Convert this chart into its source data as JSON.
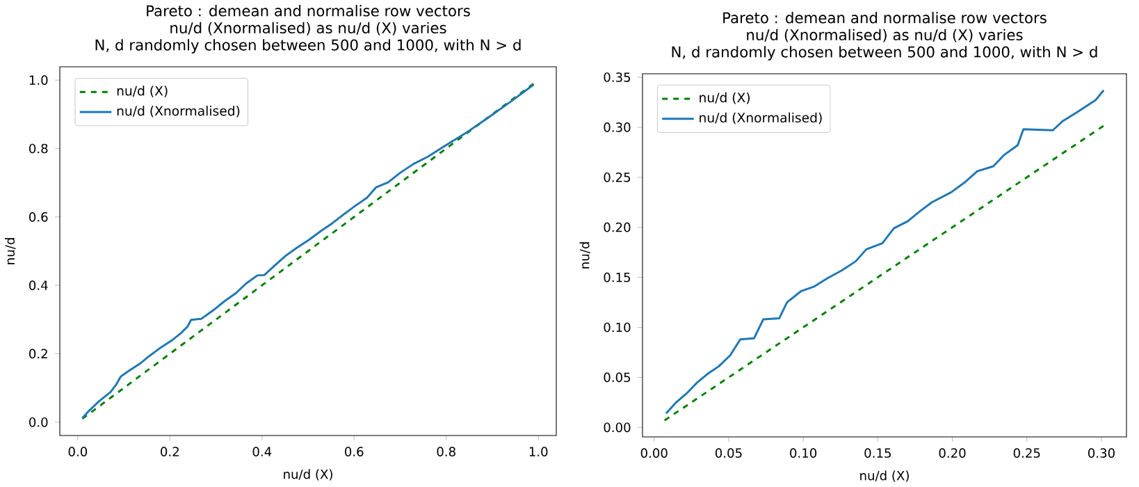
{
  "chart_data": [
    {
      "type": "line",
      "title": "Pareto : demean and normalise row vectors",
      "subtitle": "nu/d (Xnormalised) as nu/d (X) varies",
      "annotations": [
        "N, d randomly chosen between 500 and 1000, with N > d"
      ],
      "xlabel": "nu/d (X)",
      "ylabel": "nu/d",
      "xlim": [
        -0.039,
        1.039
      ],
      "ylim": [
        -0.039,
        1.039
      ],
      "xticks": [
        {
          "value": 0,
          "label": "0.0"
        },
        {
          "value": 0.2,
          "label": "0.2"
        },
        {
          "value": 0.4,
          "label": "0.4"
        },
        {
          "value": 0.6,
          "label": "0.6"
        },
        {
          "value": 0.8,
          "label": "0.8"
        },
        {
          "value": 1,
          "label": "1.0"
        }
      ],
      "yticks": [
        {
          "value": 0,
          "label": "0.0"
        },
        {
          "value": 0.2,
          "label": "0.2"
        },
        {
          "value": 0.4,
          "label": "0.4"
        },
        {
          "value": 0.6,
          "label": "0.6"
        },
        {
          "value": 0.8,
          "label": "0.8"
        },
        {
          "value": 1,
          "label": "1.0"
        }
      ],
      "legend": "top left",
      "grid": false,
      "marker": "none",
      "series": [
        {
          "name": "nu/d (X)",
          "color": "#008000",
          "line_style": "dashed",
          "x": [
            0.01,
            0.99
          ],
          "values": [
            0.01,
            0.99
          ]
        },
        {
          "name": "nu/d (Xnormalised)",
          "color": "#1f77b4",
          "line_style": "solid",
          "x": [
            0.01,
            0.025,
            0.046,
            0.059,
            0.071,
            0.083,
            0.093,
            0.111,
            0.137,
            0.152,
            0.177,
            0.203,
            0.223,
            0.238,
            0.246,
            0.268,
            0.294,
            0.319,
            0.344,
            0.365,
            0.39,
            0.405,
            0.426,
            0.451,
            0.476,
            0.502,
            0.527,
            0.552,
            0.578,
            0.603,
            0.628,
            0.648,
            0.674,
            0.699,
            0.729,
            0.76,
            0.8,
            0.841,
            0.892,
            0.942,
            0.99
          ],
          "values": [
            0.012,
            0.034,
            0.061,
            0.075,
            0.088,
            0.109,
            0.133,
            0.15,
            0.173,
            0.19,
            0.215,
            0.238,
            0.259,
            0.279,
            0.299,
            0.302,
            0.327,
            0.354,
            0.378,
            0.405,
            0.429,
            0.43,
            0.456,
            0.486,
            0.51,
            0.533,
            0.558,
            0.581,
            0.608,
            0.633,
            0.656,
            0.687,
            0.701,
            0.728,
            0.755,
            0.776,
            0.81,
            0.844,
            0.891,
            0.939,
            0.987
          ]
        }
      ]
    },
    {
      "type": "line",
      "title": "Pareto : demean and normalise row vectors",
      "subtitle": "nu/d (Xnormalised) as nu/d (X) varies",
      "annotations": [
        "N, d randomly chosen between 500 and 1000, with N > d"
      ],
      "xlabel": "nu/d (X)",
      "ylabel": "nu/d",
      "xlim": [
        -0.0078,
        0.3168
      ],
      "ylim": [
        -0.0095,
        0.3535
      ],
      "xticks": [
        {
          "value": 0,
          "label": "0.00"
        },
        {
          "value": 0.05,
          "label": "0.05"
        },
        {
          "value": 0.1,
          "label": "0.10"
        },
        {
          "value": 0.15,
          "label": "0.15"
        },
        {
          "value": 0.2,
          "label": "0.20"
        },
        {
          "value": 0.25,
          "label": "0.25"
        },
        {
          "value": 0.3,
          "label": "0.30"
        }
      ],
      "yticks": [
        {
          "value": 0,
          "label": "0.00"
        },
        {
          "value": 0.05,
          "label": "0.05"
        },
        {
          "value": 0.1,
          "label": "0.10"
        },
        {
          "value": 0.15,
          "label": "0.15"
        },
        {
          "value": 0.2,
          "label": "0.20"
        },
        {
          "value": 0.25,
          "label": "0.25"
        },
        {
          "value": 0.3,
          "label": "0.30"
        },
        {
          "value": 0.35,
          "label": "0.35"
        }
      ],
      "legend": "top left",
      "grid": false,
      "marker": "none",
      "series": [
        {
          "name": "nu/d (X)",
          "color": "#008000",
          "line_style": "dashed",
          "x": [
            0.007,
            0.302
          ],
          "values": [
            0.007,
            0.302
          ]
        },
        {
          "name": "nu/d (Xnormalised)",
          "color": "#1f77b4",
          "line_style": "solid",
          "x": [
            0.008,
            0.0148,
            0.0218,
            0.029,
            0.0363,
            0.0433,
            0.051,
            0.0578,
            0.067,
            0.0732,
            0.0839,
            0.0891,
            0.0984,
            0.1076,
            0.1162,
            0.126,
            0.1352,
            0.1423,
            0.1531,
            0.1608,
            0.17,
            0.1783,
            0.1863,
            0.1992,
            0.2084,
            0.2167,
            0.2275,
            0.2345,
            0.2438,
            0.2477,
            0.2674,
            0.2739,
            0.2837,
            0.296,
            0.3015
          ],
          "values": [
            0.014,
            0.025,
            0.034,
            0.045,
            0.054,
            0.061,
            0.072,
            0.088,
            0.089,
            0.108,
            0.109,
            0.125,
            0.136,
            0.141,
            0.149,
            0.157,
            0.166,
            0.178,
            0.184,
            0.199,
            0.206,
            0.216,
            0.225,
            0.235,
            0.245,
            0.256,
            0.261,
            0.272,
            0.282,
            0.298,
            0.297,
            0.306,
            0.315,
            0.327,
            0.337
          ]
        }
      ]
    }
  ]
}
